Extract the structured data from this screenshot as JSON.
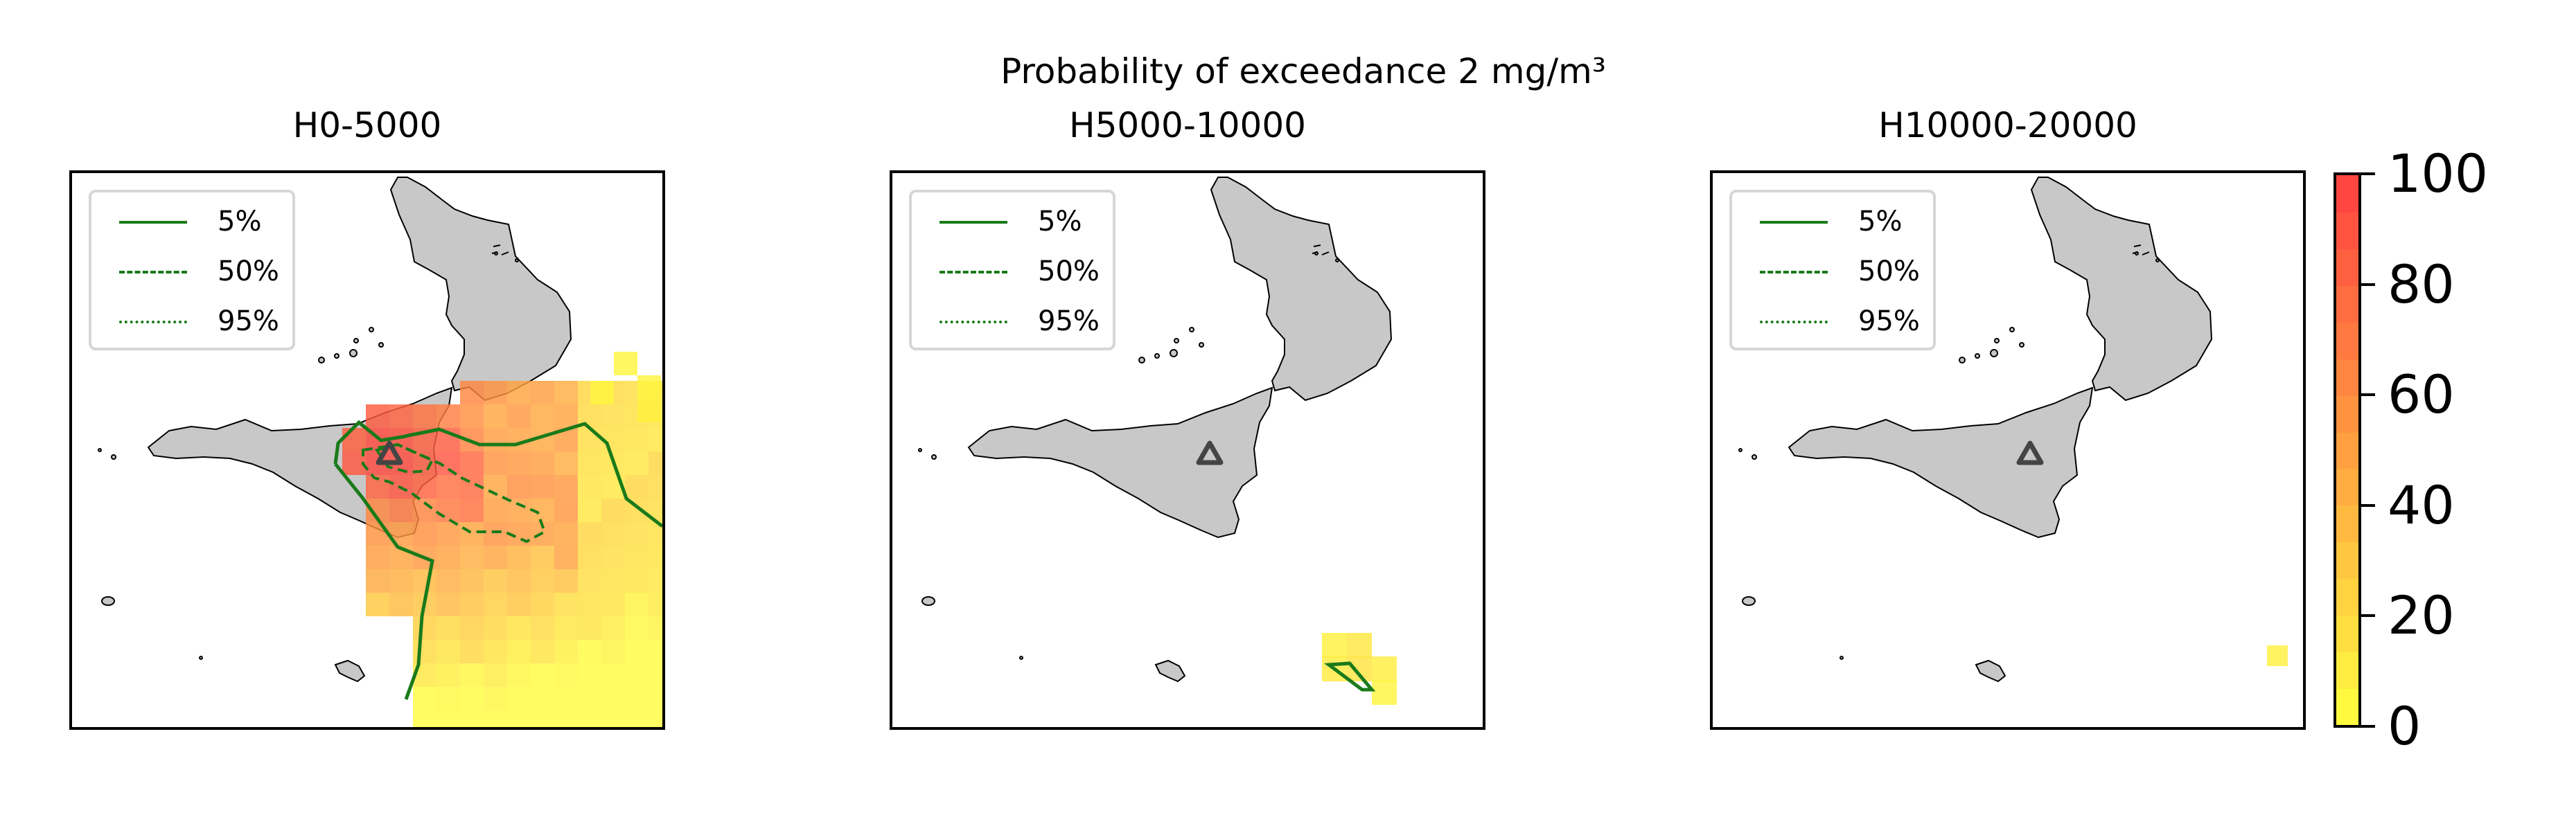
{
  "figure": {
    "suptitle": "Probability of exceedance 2 mg/m³"
  },
  "legend": [
    {
      "label": "5%",
      "style": "solid"
    },
    {
      "label": "50%",
      "style": "dashed"
    },
    {
      "label": "95%",
      "style": "dotted"
    }
  ],
  "colors": {
    "land": "#c8c8c8",
    "contour": "#1a7a1a",
    "colormap_low": "#ffff40",
    "colormap_high": "#ff4040",
    "volcano_marker": "#444444"
  },
  "panels": [
    {
      "title": "H0-5000",
      "has_contours": true
    },
    {
      "title": "H5000-10000",
      "has_contours": true
    },
    {
      "title": "H10000-20000",
      "has_contours": false
    }
  ],
  "colorbar": {
    "ticks": [
      "0",
      "20",
      "40",
      "60",
      "80",
      "100"
    ],
    "vmin": 0,
    "vmax": 100,
    "steps": 15
  },
  "chart_data": {
    "type": "heatmap",
    "title": "Probability of exceedance 2 mg/m³",
    "value_range": [
      0,
      100
    ],
    "panels": [
      {
        "name": "H0-5000",
        "max_probability_estimate": 85,
        "extent": "plume from Etna spreading south-east over eastern Sicily and the Ionian Sea"
      },
      {
        "name": "H5000-10000",
        "max_probability_estimate": 15,
        "extent": "small patch south-east of Sicily"
      },
      {
        "name": "H10000-20000",
        "max_probability_estimate": 8,
        "extent": "single cell at far south-east edge"
      }
    ]
  }
}
